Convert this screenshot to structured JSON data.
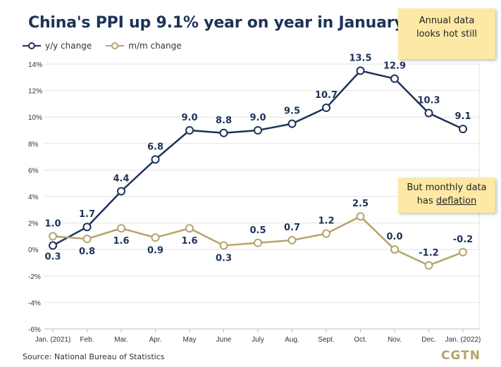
{
  "chart_data": {
    "type": "line",
    "title": "China's PPI up 9.1% year on year in January",
    "categories": [
      "Jan. (2021)",
      "Feb.",
      "Mar.",
      "Apr.",
      "May",
      "June",
      "July",
      "Aug.",
      "Sept.",
      "Oct.",
      "Nov.",
      "Dec.",
      "Jan. (2022)"
    ],
    "series": [
      {
        "name": "y/y change",
        "color": "#1c3358",
        "values": [
          0.3,
          1.7,
          4.4,
          6.8,
          9.0,
          8.8,
          9.0,
          9.5,
          10.7,
          13.5,
          12.9,
          10.3,
          9.1
        ],
        "labels": [
          "0.3",
          "1.7",
          "4.4",
          "6.8",
          "9.0",
          "8.8",
          "9.0",
          "9.5",
          "10.7",
          "13.5",
          "12.9",
          "10.3",
          "9.1"
        ]
      },
      {
        "name": "m/m change",
        "color": "#b5a46a",
        "values": [
          1.0,
          0.8,
          1.6,
          0.9,
          1.6,
          0.3,
          0.5,
          0.7,
          1.2,
          2.5,
          0.0,
          -1.2,
          -0.2
        ],
        "labels": [
          "1.0",
          "0.8",
          "1.6",
          "0.9",
          "1.6",
          "0.3",
          "0.5",
          "0.7",
          "1.2",
          "2.5",
          "0.0",
          "-1.2",
          "-0.2"
        ]
      }
    ],
    "y_ticks": [
      "14%",
      "12%",
      "10%",
      "8%",
      "6%",
      "4%",
      "2%",
      "0%",
      "-2%",
      "-4%",
      "-6%"
    ],
    "ylim": [
      -6,
      14
    ],
    "xlabel": "",
    "ylabel": "",
    "grid": true,
    "legend": "top-left"
  },
  "annotations": {
    "note_top_line1": "Annual data",
    "note_top_line2": "looks hot still",
    "note_bottom_line1": "But monthly data",
    "note_bottom_line2_prefix": "has ",
    "note_bottom_line2_underlined": "deflation"
  },
  "footer": {
    "source": "Source: National Bureau of Statistics",
    "logo": "CGTN"
  }
}
